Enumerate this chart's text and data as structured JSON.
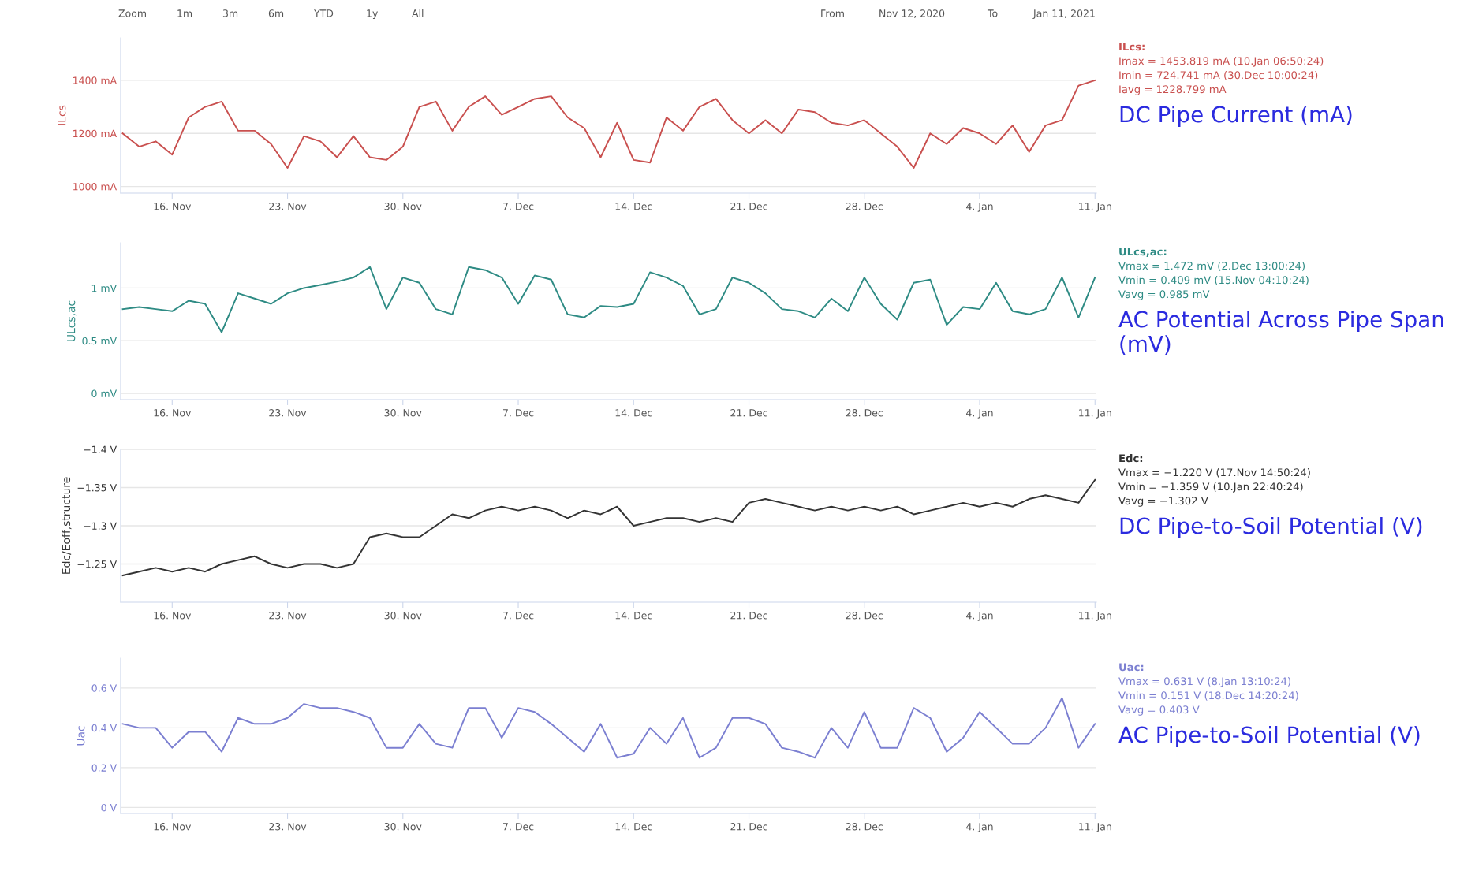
{
  "chart_data": [
    {
      "type": "other",
      "annotations": [
        "Zoom",
        "1m",
        "3m",
        "6m",
        "YTD",
        "1y",
        "All",
        "From",
        "Nov 12, 2020",
        "To",
        "Jan 11, 2021"
      ]
    },
    {
      "type": "line",
      "title": "DC Pipe Current (mA)",
      "ylabel": "ILcs",
      "grid": "y",
      "xlim": [
        "2020-11-12T21:00",
        "2021-01-11T02:00"
      ],
      "xticks": [
        {
          "value": "2020-11-16",
          "label": "16. Nov"
        },
        {
          "value": "2020-11-23",
          "label": "23. Nov"
        },
        {
          "value": "2020-11-30",
          "label": "30. Nov"
        },
        {
          "value": "2020-12-07",
          "label": "7. Dec"
        },
        {
          "value": "2020-12-14",
          "label": "14. Dec"
        },
        {
          "value": "2020-12-21",
          "label": "21. Dec"
        },
        {
          "value": "2020-12-28",
          "label": "28. Dec"
        },
        {
          "value": "2021-01-04",
          "label": "4. Jan"
        },
        {
          "value": "2021-01-11",
          "label": "11. Jan"
        }
      ],
      "ylim": [
        975,
        1560
      ],
      "yticks": [
        {
          "value": 1000,
          "label": "1000 mA"
        },
        {
          "value": 1200,
          "label": "1200 mA"
        },
        {
          "value": 1400,
          "label": "1400 mA"
        }
      ],
      "annotations": [
        "ILcs:",
        "Imax = 1453.819 mA (10.Jan 06:50:24)",
        "Imin = 724.741 mA (30.Dec 10:00:24)",
        "Iavg = 1228.799 mA"
      ],
      "x": [
        "2020-11-13",
        "2020-11-14",
        "2020-11-15",
        "2020-11-16",
        "2020-11-17",
        "2020-11-18",
        "2020-11-19",
        "2020-11-20",
        "2020-11-21",
        "2020-11-22",
        "2020-11-23",
        "2020-11-24",
        "2020-11-25",
        "2020-11-26",
        "2020-11-27",
        "2020-11-28",
        "2020-11-29",
        "2020-11-30",
        "2020-12-01",
        "2020-12-02",
        "2020-12-03",
        "2020-12-04",
        "2020-12-05",
        "2020-12-06",
        "2020-12-07",
        "2020-12-08",
        "2020-12-09",
        "2020-12-10",
        "2020-12-11",
        "2020-12-12",
        "2020-12-13",
        "2020-12-14",
        "2020-12-15",
        "2020-12-16",
        "2020-12-17",
        "2020-12-18",
        "2020-12-19",
        "2020-12-20",
        "2020-12-21",
        "2020-12-22",
        "2020-12-23",
        "2020-12-24",
        "2020-12-25",
        "2020-12-26",
        "2020-12-27",
        "2020-12-28",
        "2020-12-29",
        "2020-12-30",
        "2020-12-31",
        "2021-01-01",
        "2021-01-02",
        "2021-01-03",
        "2021-01-04",
        "2021-01-05",
        "2021-01-06",
        "2021-01-07",
        "2021-01-08",
        "2021-01-09",
        "2021-01-10",
        "2021-01-11"
      ],
      "series": [
        {
          "color": "#c9504f",
          "values": [
            1200,
            1150,
            1170,
            1120,
            1260,
            1300,
            1320,
            1210,
            1210,
            1160,
            1070,
            1190,
            1170,
            1110,
            1190,
            1110,
            1100,
            1150,
            1300,
            1320,
            1210,
            1300,
            1340,
            1270,
            1300,
            1330,
            1340,
            1260,
            1220,
            1110,
            1240,
            1100,
            1090,
            1260,
            1210,
            1300,
            1330,
            1250,
            1200,
            1250,
            1200,
            1290,
            1280,
            1240,
            1230,
            1250,
            1200,
            1150,
            1070,
            1200,
            1160,
            1220,
            1200,
            1160,
            1230,
            1130,
            1230,
            1250,
            1380,
            1400
          ]
        }
      ]
    },
    {
      "type": "line",
      "title": "AC Potential Across Pipe Span (mV)",
      "ylabel": "ULcs,ac",
      "grid": "y",
      "xlim": [
        "2020-11-12T21:00",
        "2021-01-11T02:00"
      ],
      "xticks": [
        {
          "value": "2020-11-16",
          "label": "16. Nov"
        },
        {
          "value": "2020-11-23",
          "label": "23. Nov"
        },
        {
          "value": "2020-11-30",
          "label": "30. Nov"
        },
        {
          "value": "2020-12-07",
          "label": "7. Dec"
        },
        {
          "value": "2020-12-14",
          "label": "14. Dec"
        },
        {
          "value": "2020-12-21",
          "label": "21. Dec"
        },
        {
          "value": "2020-12-28",
          "label": "28. Dec"
        },
        {
          "value": "2021-01-04",
          "label": "4. Jan"
        },
        {
          "value": "2021-01-11",
          "label": "11. Jan"
        }
      ],
      "ylim": [
        -0.06,
        1.43
      ],
      "yticks": [
        {
          "value": 0,
          "label": "0 mV"
        },
        {
          "value": 0.5,
          "label": "0.5 mV"
        },
        {
          "value": 1,
          "label": "1 mV"
        }
      ],
      "annotations": [
        "ULcs,ac:",
        "Vmax = 1.472 mV (2.Dec 13:00:24)",
        "Vmin = 0.409 mV (15.Nov 04:10:24)",
        "Vavg = 0.985 mV"
      ],
      "x": [
        "2020-11-13",
        "2020-11-14",
        "2020-11-15",
        "2020-11-16",
        "2020-11-17",
        "2020-11-18",
        "2020-11-19",
        "2020-11-20",
        "2020-11-21",
        "2020-11-22",
        "2020-11-23",
        "2020-11-24",
        "2020-11-25",
        "2020-11-26",
        "2020-11-27",
        "2020-11-28",
        "2020-11-29",
        "2020-11-30",
        "2020-12-01",
        "2020-12-02",
        "2020-12-03",
        "2020-12-04",
        "2020-12-05",
        "2020-12-06",
        "2020-12-07",
        "2020-12-08",
        "2020-12-09",
        "2020-12-10",
        "2020-12-11",
        "2020-12-12",
        "2020-12-13",
        "2020-12-14",
        "2020-12-15",
        "2020-12-16",
        "2020-12-17",
        "2020-12-18",
        "2020-12-19",
        "2020-12-20",
        "2020-12-21",
        "2020-12-22",
        "2020-12-23",
        "2020-12-24",
        "2020-12-25",
        "2020-12-26",
        "2020-12-27",
        "2020-12-28",
        "2020-12-29",
        "2020-12-30",
        "2020-12-31",
        "2021-01-01",
        "2021-01-02",
        "2021-01-03",
        "2021-01-04",
        "2021-01-05",
        "2021-01-06",
        "2021-01-07",
        "2021-01-08",
        "2021-01-09",
        "2021-01-10",
        "2021-01-11"
      ],
      "series": [
        {
          "color": "#2e8b84",
          "values": [
            0.8,
            0.82,
            0.8,
            0.78,
            0.88,
            0.85,
            0.58,
            0.95,
            0.9,
            0.85,
            0.95,
            1.0,
            1.03,
            1.06,
            1.1,
            1.2,
            0.8,
            1.1,
            1.05,
            0.8,
            0.75,
            1.2,
            1.17,
            1.1,
            0.85,
            1.12,
            1.08,
            0.75,
            0.72,
            0.83,
            0.82,
            0.85,
            1.15,
            1.1,
            1.02,
            0.75,
            0.8,
            1.1,
            1.05,
            0.95,
            0.8,
            0.78,
            0.72,
            0.9,
            0.78,
            1.1,
            0.85,
            0.7,
            1.05,
            1.08,
            0.65,
            0.82,
            0.8,
            1.05,
            0.78,
            0.75,
            0.8,
            1.1,
            0.72,
            1.1
          ]
        }
      ]
    },
    {
      "type": "line",
      "title": "DC Pipe-to-Soil Potential (V)",
      "ylabel": "Edc/Eoff,structure",
      "grid": "y",
      "xlim": [
        "2020-11-12T21:00",
        "2021-01-11T02:00"
      ],
      "xticks": [
        {
          "value": "2020-11-16",
          "label": "16. Nov"
        },
        {
          "value": "2020-11-23",
          "label": "23. Nov"
        },
        {
          "value": "2020-11-30",
          "label": "30. Nov"
        },
        {
          "value": "2020-12-07",
          "label": "7. Dec"
        },
        {
          "value": "2020-12-14",
          "label": "14. Dec"
        },
        {
          "value": "2020-12-21",
          "label": "21. Dec"
        },
        {
          "value": "2020-12-28",
          "label": "28. Dec"
        },
        {
          "value": "2021-01-04",
          "label": "4. Jan"
        },
        {
          "value": "2021-01-11",
          "label": "11. Jan"
        }
      ],
      "ylim": [
        -1.2,
        -1.4
      ],
      "yticks": [
        {
          "value": -1.25,
          "label": "−1.25 V"
        },
        {
          "value": -1.3,
          "label": "−1.3 V"
        },
        {
          "value": -1.35,
          "label": "−1.35 V"
        },
        {
          "value": -1.4,
          "label": "−1.4 V"
        }
      ],
      "annotations": [
        "Edc:",
        "Vmax = −1.220 V (17.Nov 14:50:24)",
        "Vmin = −1.359 V (10.Jan 22:40:24)",
        "Vavg = −1.302 V"
      ],
      "x": [
        "2020-11-13",
        "2020-11-14",
        "2020-11-15",
        "2020-11-16",
        "2020-11-17",
        "2020-11-18",
        "2020-11-19",
        "2020-11-20",
        "2020-11-21",
        "2020-11-22",
        "2020-11-23",
        "2020-11-24",
        "2020-11-25",
        "2020-11-26",
        "2020-11-27",
        "2020-11-28",
        "2020-11-29",
        "2020-11-30",
        "2020-12-01",
        "2020-12-02",
        "2020-12-03",
        "2020-12-04",
        "2020-12-05",
        "2020-12-06",
        "2020-12-07",
        "2020-12-08",
        "2020-12-09",
        "2020-12-10",
        "2020-12-11",
        "2020-12-12",
        "2020-12-13",
        "2020-12-14",
        "2020-12-15",
        "2020-12-16",
        "2020-12-17",
        "2020-12-18",
        "2020-12-19",
        "2020-12-20",
        "2020-12-21",
        "2020-12-22",
        "2020-12-23",
        "2020-12-24",
        "2020-12-25",
        "2020-12-26",
        "2020-12-27",
        "2020-12-28",
        "2020-12-29",
        "2020-12-30",
        "2020-12-31",
        "2021-01-01",
        "2021-01-02",
        "2021-01-03",
        "2021-01-04",
        "2021-01-05",
        "2021-01-06",
        "2021-01-07",
        "2021-01-08",
        "2021-01-09",
        "2021-01-10",
        "2021-01-11"
      ],
      "series": [
        {
          "color": "#333333",
          "values": [
            -1.235,
            -1.24,
            -1.245,
            -1.24,
            -1.245,
            -1.24,
            -1.25,
            -1.255,
            -1.26,
            -1.25,
            -1.245,
            -1.25,
            -1.25,
            -1.245,
            -1.25,
            -1.285,
            -1.29,
            -1.285,
            -1.285,
            -1.3,
            -1.315,
            -1.31,
            -1.32,
            -1.325,
            -1.32,
            -1.325,
            -1.32,
            -1.31,
            -1.32,
            -1.315,
            -1.325,
            -1.3,
            -1.305,
            -1.31,
            -1.31,
            -1.305,
            -1.31,
            -1.305,
            -1.33,
            -1.335,
            -1.33,
            -1.325,
            -1.32,
            -1.325,
            -1.32,
            -1.325,
            -1.32,
            -1.325,
            -1.315,
            -1.32,
            -1.325,
            -1.33,
            -1.325,
            -1.33,
            -1.325,
            -1.335,
            -1.34,
            -1.335,
            -1.33,
            -1.36
          ]
        }
      ]
    },
    {
      "type": "line",
      "title": "AC Pipe-to-Soil Potential (V)",
      "ylabel": "Uac",
      "grid": "y",
      "xlim": [
        "2020-11-12T21:00",
        "2021-01-11T02:00"
      ],
      "xticks": [
        {
          "value": "2020-11-16",
          "label": "16. Nov"
        },
        {
          "value": "2020-11-23",
          "label": "23. Nov"
        },
        {
          "value": "2020-11-30",
          "label": "30. Nov"
        },
        {
          "value": "2020-12-07",
          "label": "7. Dec"
        },
        {
          "value": "2020-12-14",
          "label": "14. Dec"
        },
        {
          "value": "2020-12-21",
          "label": "21. Dec"
        },
        {
          "value": "2020-12-28",
          "label": "28. Dec"
        },
        {
          "value": "2021-01-04",
          "label": "4. Jan"
        },
        {
          "value": "2021-01-11",
          "label": "11. Jan"
        }
      ],
      "ylim": [
        -0.03,
        0.75
      ],
      "yticks": [
        {
          "value": 0,
          "label": "0 V"
        },
        {
          "value": 0.2,
          "label": "0.2 V"
        },
        {
          "value": 0.4,
          "label": "0.4 V"
        },
        {
          "value": 0.6,
          "label": "0.6 V"
        }
      ],
      "annotations": [
        "Uac:",
        "Vmax = 0.631 V (8.Jan 13:10:24)",
        "Vmin = 0.151 V (18.Dec 14:20:24)",
        "Vavg = 0.403 V"
      ],
      "x": [
        "2020-11-13",
        "2020-11-14",
        "2020-11-15",
        "2020-11-16",
        "2020-11-17",
        "2020-11-18",
        "2020-11-19",
        "2020-11-20",
        "2020-11-21",
        "2020-11-22",
        "2020-11-23",
        "2020-11-24",
        "2020-11-25",
        "2020-11-26",
        "2020-11-27",
        "2020-11-28",
        "2020-11-29",
        "2020-11-30",
        "2020-12-01",
        "2020-12-02",
        "2020-12-03",
        "2020-12-04",
        "2020-12-05",
        "2020-12-06",
        "2020-12-07",
        "2020-12-08",
        "2020-12-09",
        "2020-12-10",
        "2020-12-11",
        "2020-12-12",
        "2020-12-13",
        "2020-12-14",
        "2020-12-15",
        "2020-12-16",
        "2020-12-17",
        "2020-12-18",
        "2020-12-19",
        "2020-12-20",
        "2020-12-21",
        "2020-12-22",
        "2020-12-23",
        "2020-12-24",
        "2020-12-25",
        "2020-12-26",
        "2020-12-27",
        "2020-12-28",
        "2020-12-29",
        "2020-12-30",
        "2020-12-31",
        "2021-01-01",
        "2021-01-02",
        "2021-01-03",
        "2021-01-04",
        "2021-01-05",
        "2021-01-06",
        "2021-01-07",
        "2021-01-08",
        "2021-01-09",
        "2021-01-10",
        "2021-01-11"
      ],
      "series": [
        {
          "color": "#7b7fd1",
          "values": [
            0.42,
            0.4,
            0.4,
            0.3,
            0.38,
            0.38,
            0.28,
            0.45,
            0.42,
            0.42,
            0.45,
            0.52,
            0.5,
            0.5,
            0.48,
            0.45,
            0.3,
            0.3,
            0.42,
            0.32,
            0.3,
            0.5,
            0.5,
            0.35,
            0.5,
            0.48,
            0.42,
            0.35,
            0.28,
            0.42,
            0.25,
            0.27,
            0.4,
            0.32,
            0.45,
            0.25,
            0.3,
            0.45,
            0.45,
            0.42,
            0.3,
            0.28,
            0.25,
            0.4,
            0.3,
            0.48,
            0.3,
            0.3,
            0.5,
            0.45,
            0.28,
            0.35,
            0.48,
            0.4,
            0.32,
            0.32,
            0.4,
            0.55,
            0.3,
            0.42
          ]
        }
      ]
    }
  ]
}
